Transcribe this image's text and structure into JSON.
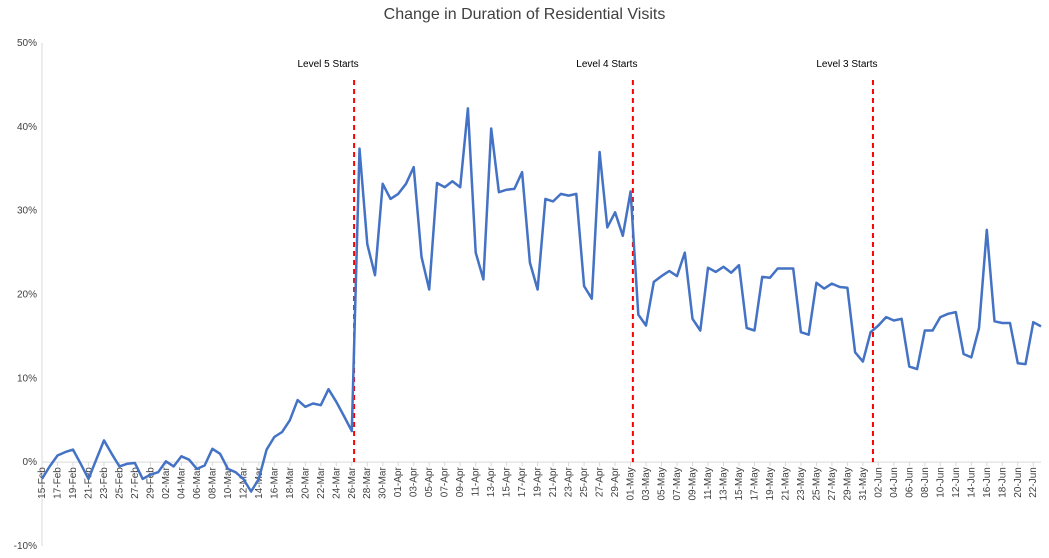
{
  "chart_data": {
    "type": "line",
    "title": "Change in Duration of Residential Visits",
    "xlabel": "",
    "ylabel": "",
    "ylim": [
      -0.1,
      0.5
    ],
    "yticks": [
      -0.1,
      0.0,
      0.1,
      0.2,
      0.3,
      0.4,
      0.5
    ],
    "yticklabels": [
      "-10%",
      "0%",
      "10%",
      "20%",
      "30%",
      "40%",
      "50%"
    ],
    "grid": false,
    "legend": "none",
    "line_color": "#4472C4",
    "marker_color": "#FF0000",
    "x": [
      "15-Feb",
      "16-Feb",
      "17-Feb",
      "18-Feb",
      "19-Feb",
      "20-Feb",
      "21-Feb",
      "22-Feb",
      "23-Feb",
      "24-Feb",
      "25-Feb",
      "26-Feb",
      "27-Feb",
      "28-Feb",
      "29-Feb",
      "01-Mar",
      "02-Mar",
      "03-Mar",
      "04-Mar",
      "05-Mar",
      "06-Mar",
      "07-Mar",
      "08-Mar",
      "09-Mar",
      "10-Mar",
      "11-Mar",
      "12-Mar",
      "13-Mar",
      "14-Mar",
      "15-Mar",
      "16-Mar",
      "17-Mar",
      "18-Mar",
      "19-Mar",
      "20-Mar",
      "21-Mar",
      "22-Mar",
      "23-Mar",
      "24-Mar",
      "25-Mar",
      "26-Mar",
      "27-Mar",
      "28-Mar",
      "29-Mar",
      "30-Mar",
      "31-Mar",
      "01-Apr",
      "02-Apr",
      "03-Apr",
      "04-Apr",
      "05-Apr",
      "06-Apr",
      "07-Apr",
      "08-Apr",
      "09-Apr",
      "10-Apr",
      "11-Apr",
      "12-Apr",
      "13-Apr",
      "14-Apr",
      "15-Apr",
      "16-Apr",
      "17-Apr",
      "18-Apr",
      "19-Apr",
      "20-Apr",
      "21-Apr",
      "22-Apr",
      "23-Apr",
      "24-Apr",
      "25-Apr",
      "26-Apr",
      "27-Apr",
      "28-Apr",
      "29-Apr",
      "30-Apr",
      "01-May",
      "02-May",
      "03-May",
      "04-May",
      "05-May",
      "06-May",
      "07-May",
      "08-May",
      "09-May",
      "10-May",
      "11-May",
      "12-May",
      "13-May",
      "14-May",
      "15-May",
      "16-May",
      "17-May",
      "18-May",
      "19-May",
      "20-May",
      "21-May",
      "22-May",
      "23-May",
      "24-May",
      "25-May",
      "26-May",
      "27-May",
      "28-May",
      "29-May",
      "30-May",
      "31-May",
      "01-Jun",
      "02-Jun",
      "03-Jun",
      "04-Jun",
      "05-Jun",
      "06-Jun",
      "07-Jun",
      "08-Jun",
      "09-Jun",
      "10-Jun",
      "11-Jun",
      "12-Jun",
      "13-Jun",
      "14-Jun",
      "15-Jun",
      "16-Jun",
      "17-Jun",
      "18-Jun",
      "19-Jun",
      "20-Jun",
      "21-Jun",
      "22-Jun",
      "23-Jun"
    ],
    "xticklabels": [
      "15-Feb",
      "17-Feb",
      "19-Feb",
      "21-Feb",
      "23-Feb",
      "25-Feb",
      "27-Feb",
      "29-Feb",
      "02-Mar",
      "04-Mar",
      "06-Mar",
      "08-Mar",
      "10-Mar",
      "12-Mar",
      "14-Mar",
      "16-Mar",
      "18-Mar",
      "20-Mar",
      "22-Mar",
      "24-Mar",
      "26-Mar",
      "28-Mar",
      "30-Mar",
      "01-Apr",
      "03-Apr",
      "05-Apr",
      "07-Apr",
      "09-Apr",
      "11-Apr",
      "13-Apr",
      "15-Apr",
      "17-Apr",
      "19-Apr",
      "21-Apr",
      "23-Apr",
      "25-Apr",
      "27-Apr",
      "29-Apr",
      "01-May",
      "03-May",
      "05-May",
      "07-May",
      "09-May",
      "11-May",
      "13-May",
      "15-May",
      "17-May",
      "19-May",
      "21-May",
      "23-May",
      "25-May",
      "27-May",
      "29-May",
      "31-May",
      "02-Jun",
      "04-Jun",
      "06-Jun",
      "08-Jun",
      "10-Jun",
      "12-Jun",
      "14-Jun",
      "16-Jun",
      "18-Jun",
      "20-Jun",
      "22-Jun"
    ],
    "series": [
      {
        "values": [
          -0.02,
          -0.005,
          0.008,
          0.012,
          0.015,
          -0.002,
          -0.02,
          0.003,
          0.026,
          0.01,
          -0.005,
          -0.002,
          -0.001,
          -0.02,
          -0.015,
          -0.012,
          0.001,
          -0.005,
          0.007,
          0.003,
          -0.008,
          -0.004,
          0.016,
          0.01,
          -0.008,
          -0.012,
          -0.02,
          -0.035,
          -0.02,
          0.015,
          0.03,
          0.036,
          0.05,
          0.074,
          0.066,
          0.07,
          0.068,
          0.087,
          0.072,
          0.055,
          0.037,
          0.374,
          0.26,
          0.223,
          0.332,
          0.314,
          0.32,
          0.332,
          0.352,
          0.245,
          0.206,
          0.333,
          0.328,
          0.335,
          0.328,
          0.422,
          0.25,
          0.218,
          0.398,
          0.322,
          0.325,
          0.326,
          0.346,
          0.238,
          0.206,
          0.314,
          0.311,
          0.32,
          0.318,
          0.32,
          0.21,
          0.195,
          0.37,
          0.28,
          0.298,
          0.27,
          0.323,
          0.176,
          0.163,
          0.215,
          0.222,
          0.228,
          0.222,
          0.25,
          0.171,
          0.157,
          0.232,
          0.227,
          0.233,
          0.226,
          0.235,
          0.16,
          0.157,
          0.221,
          0.22,
          0.231,
          0.231,
          0.231,
          0.155,
          0.152,
          0.214,
          0.207,
          0.213,
          0.209,
          0.208,
          0.131,
          0.12,
          0.155,
          0.163,
          0.173,
          0.169,
          0.171,
          0.114,
          0.111,
          0.157,
          0.157,
          0.173,
          0.177,
          0.179,
          0.129,
          0.125,
          0.16,
          0.277,
          0.168,
          0.166,
          0.166,
          0.118,
          0.117,
          0.167,
          0.162
        ]
      }
    ],
    "annotations": [
      {
        "label": "Level 5 Starts",
        "x": "27-Mar"
      },
      {
        "label": "Level 4 Starts",
        "x": "02-May"
      },
      {
        "label": "Level 3 Starts",
        "x": "02-Jun"
      }
    ]
  }
}
